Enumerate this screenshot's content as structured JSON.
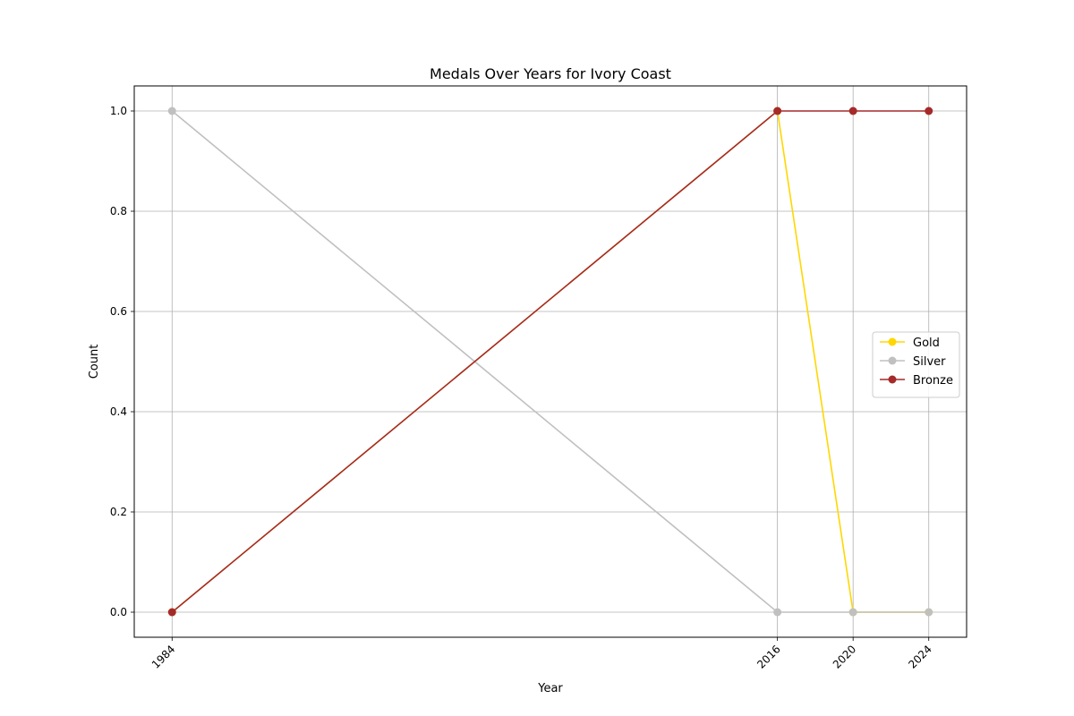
{
  "chart_data": {
    "type": "line",
    "title": "Medals Over Years for Ivory Coast",
    "xlabel": "Year",
    "ylabel": "Count",
    "x": [
      1984,
      2016,
      2020,
      2024
    ],
    "x_tick_labels": [
      "1984",
      "2016",
      "2020",
      "2024"
    ],
    "y_ticks": [
      0.0,
      0.2,
      0.4,
      0.6,
      0.8,
      1.0
    ],
    "y_tick_labels": [
      "0.0",
      "0.2",
      "0.4",
      "0.6",
      "0.8",
      "1.0"
    ],
    "ylim": [
      -0.05,
      1.05
    ],
    "xlim": [
      1982.0,
      2026.0
    ],
    "grid": true,
    "legend_position": "center-right",
    "series": [
      {
        "name": "Gold",
        "color": "#FFD700",
        "values": [
          0,
          1,
          0,
          0
        ]
      },
      {
        "name": "Silver",
        "color": "#C0C0C0",
        "values": [
          1,
          0,
          0,
          0
        ]
      },
      {
        "name": "Bronze",
        "color": "#A52A2A",
        "values": [
          0,
          1,
          1,
          1
        ]
      }
    ]
  }
}
